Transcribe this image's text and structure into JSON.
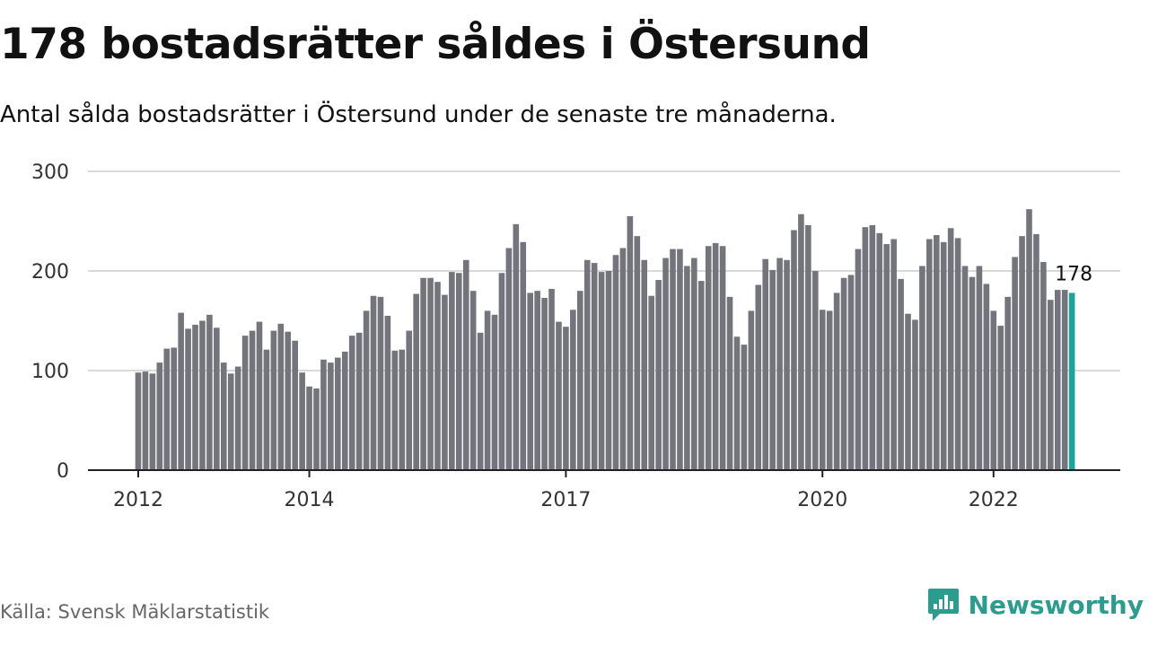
{
  "title": "178 bostadsrätter såldes i Östersund",
  "subtitle": "Antal sålda bostadsrätter i Östersund under de senaste tre månaderna.",
  "source": "Källa: Svensk Mäklarstatistik",
  "brand": {
    "name": "Newsworthy",
    "color": "#2a9d8f",
    "icon": "newsworthy-logo-icon"
  },
  "colors": {
    "bar": "#74747c",
    "highlight": "#1aa59a",
    "grid": "#d9d9d9",
    "axis": "#222222"
  },
  "chart_data": {
    "type": "bar",
    "title": "178 bostadsrätter såldes i Östersund",
    "subtitle": "Antal sålda bostadsrätter i Östersund under de senaste tre månaderna.",
    "xlabel": "",
    "ylabel": "",
    "ylim": [
      0,
      300
    ],
    "yticks": [
      0,
      100,
      200,
      300
    ],
    "xticks": [
      "2012",
      "2014",
      "2017",
      "2020",
      "2022"
    ],
    "grid": true,
    "first_period": "2012-01",
    "frequency": "monthly",
    "values": [
      98,
      99,
      97,
      108,
      122,
      123,
      158,
      142,
      146,
      150,
      156,
      143,
      108,
      97,
      104,
      135,
      140,
      149,
      121,
      140,
      147,
      139,
      130,
      98,
      84,
      82,
      111,
      108,
      113,
      119,
      135,
      138,
      160,
      175,
      174,
      155,
      120,
      121,
      140,
      177,
      193,
      193,
      189,
      176,
      199,
      198,
      211,
      180,
      138,
      160,
      156,
      198,
      223,
      247,
      229,
      178,
      180,
      173,
      182,
      149,
      144,
      161,
      180,
      211,
      208,
      199,
      200,
      216,
      223,
      255,
      235,
      211,
      175,
      191,
      213,
      222,
      222,
      205,
      213,
      190,
      225,
      228,
      225,
      174,
      134,
      126,
      160,
      186,
      212,
      201,
      213,
      211,
      241,
      257,
      246,
      200,
      161,
      160,
      178,
      193,
      196,
      222,
      244,
      246,
      238,
      227,
      232,
      192,
      157,
      151,
      205,
      232,
      236,
      229,
      243,
      233,
      205,
      194,
      205,
      187,
      160,
      145,
      174,
      214,
      235,
      262,
      237,
      209,
      171,
      181,
      181,
      178
    ],
    "highlight_label": "178"
  }
}
